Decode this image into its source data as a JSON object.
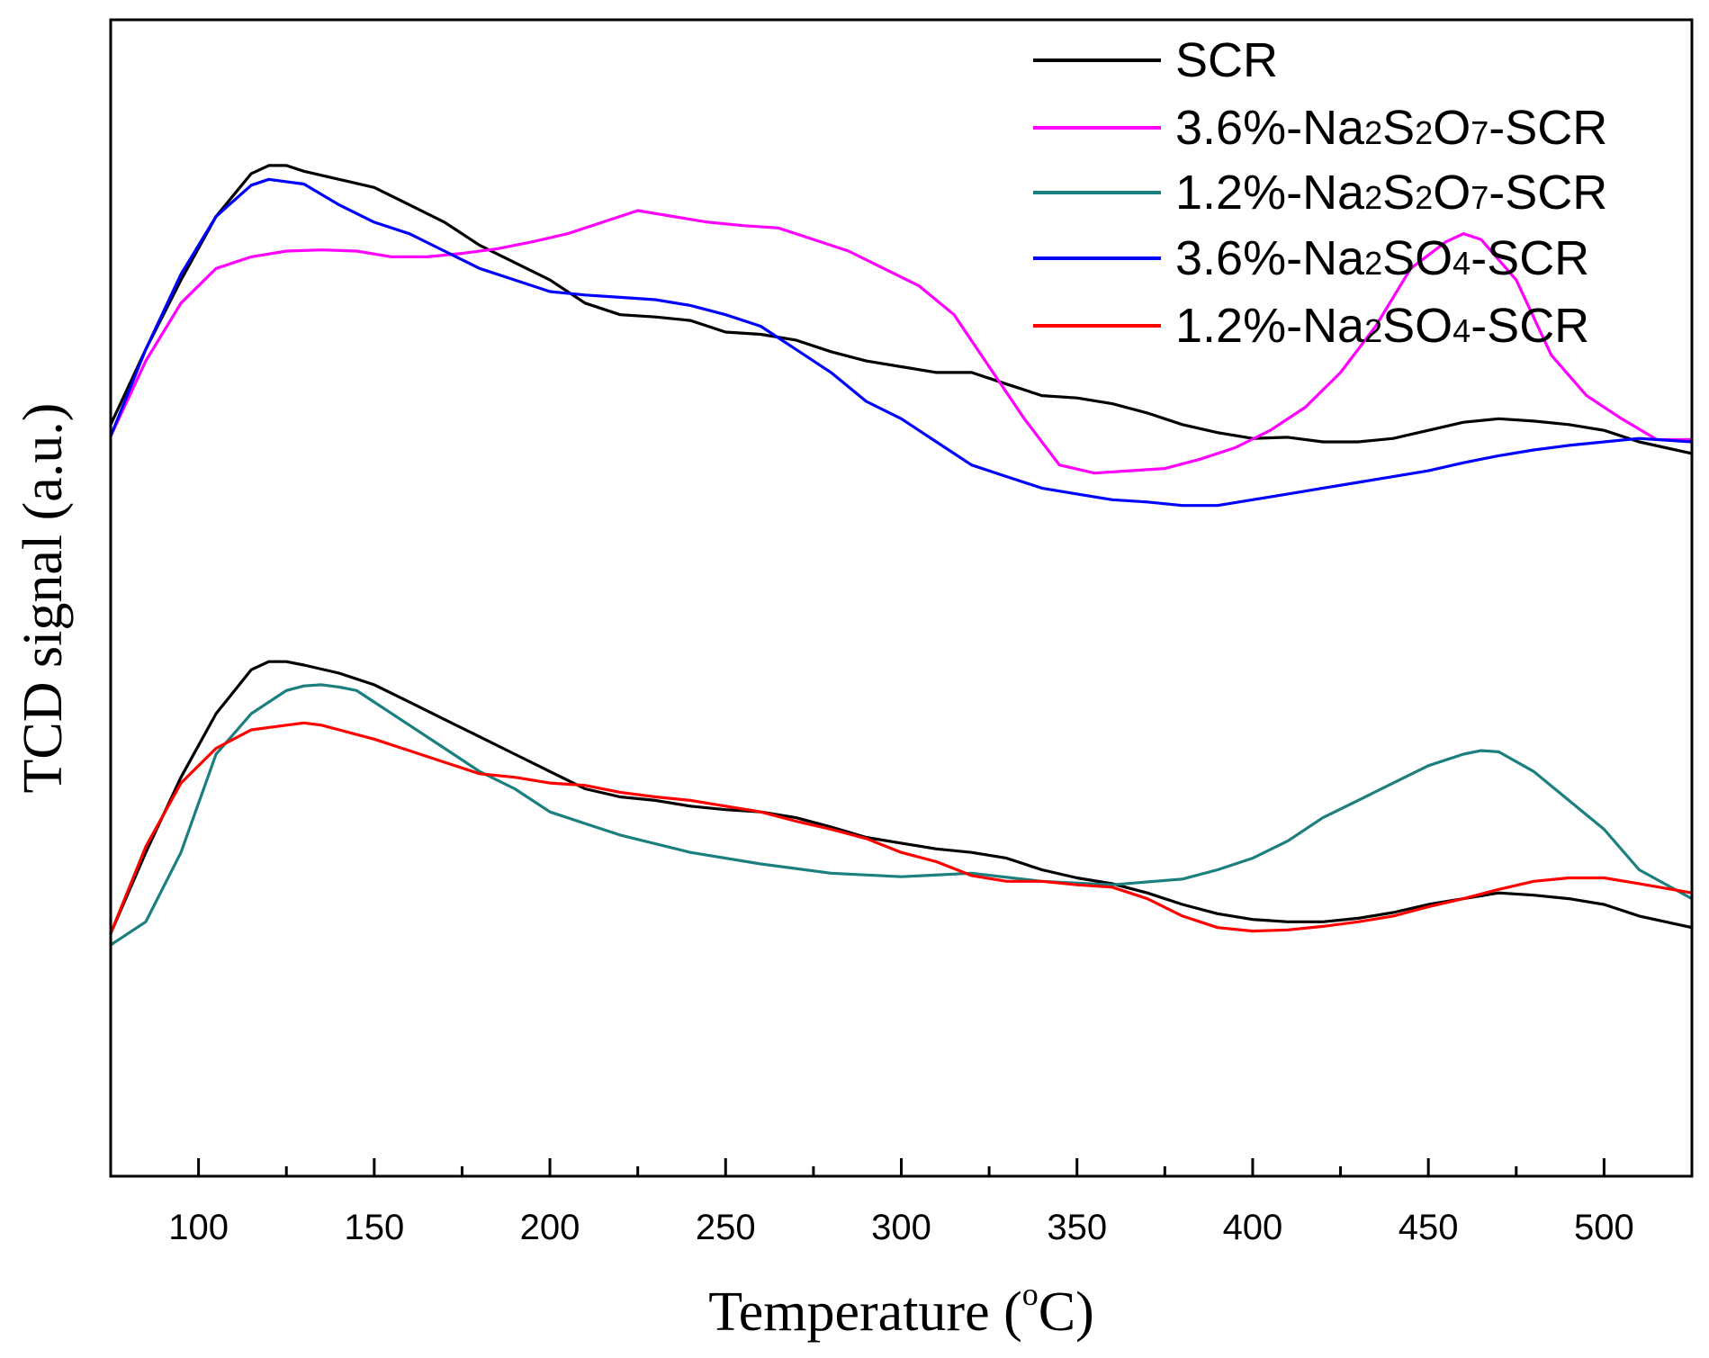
{
  "chart_data": {
    "type": "line",
    "title": "",
    "xlabel": "Temperature (oC)",
    "xlabel_parts": {
      "prefix": "Temperature (",
      "sup": "o",
      "suffix": "C)"
    },
    "ylabel": "TCD signal (a.u.)",
    "xlim": [
      75,
      525
    ],
    "ylim": [
      0,
      100
    ],
    "y_ticks_shown": false,
    "x_ticks": [
      100,
      150,
      200,
      250,
      300,
      350,
      400,
      450,
      500
    ],
    "x_tick_labels": [
      "100",
      "150",
      "200",
      "250",
      "300",
      "350",
      "400",
      "450",
      "500"
    ],
    "legend_position": "top-right",
    "series": [
      {
        "name": "SCR (upper)",
        "legend_label": "SCR",
        "color": "#000000",
        "x": [
          75,
          85,
          95,
          105,
          115,
          120,
          125,
          130,
          140,
          150,
          160,
          170,
          180,
          190,
          200,
          210,
          220,
          230,
          240,
          250,
          260,
          270,
          280,
          290,
          300,
          310,
          320,
          330,
          340,
          350,
          360,
          370,
          380,
          390,
          400,
          410,
          420,
          430,
          440,
          450,
          460,
          470,
          480,
          490,
          500,
          510,
          525
        ],
        "y": [
          65,
          71.5,
          77.5,
          83,
          86.7,
          87.4,
          87.4,
          86.9,
          86.2,
          85.5,
          84,
          82.5,
          80.5,
          79,
          77.5,
          75.5,
          74.5,
          74.3,
          74,
          73,
          72.8,
          72.3,
          71.3,
          70.5,
          70,
          69.5,
          69.5,
          68.5,
          67.5,
          67.3,
          66.8,
          66,
          65,
          64.3,
          63.8,
          63.9,
          63.5,
          63.5,
          63.8,
          64.5,
          65.2,
          65.5,
          65.3,
          65,
          64.5,
          63.5,
          62.5
        ]
      },
      {
        "name": "3.6%-Na2S2O7-SCR",
        "legend_label": "3.6%-Na2S2O7-SCR",
        "legend_parts": [
          "3.6%-Na",
          "2",
          "S",
          "2",
          "O",
          "7",
          "-SCR"
        ],
        "color": "#ff00ff",
        "x": [
          75,
          85,
          95,
          105,
          115,
          125,
          135,
          145,
          155,
          165,
          175,
          185,
          195,
          205,
          215,
          225,
          235,
          245,
          255,
          265,
          275,
          285,
          295,
          305,
          315,
          325,
          335,
          345,
          355,
          365,
          375,
          385,
          395,
          405,
          415,
          425,
          435,
          445,
          455,
          460,
          465,
          475,
          485,
          495,
          505,
          515,
          525
        ],
        "y": [
          64,
          70.5,
          75.5,
          78.5,
          79.5,
          80,
          80.1,
          80,
          79.5,
          79.5,
          79.8,
          80.2,
          80.8,
          81.5,
          82.5,
          83.5,
          83,
          82.5,
          82.2,
          82,
          81,
          80,
          78.5,
          77,
          74.5,
          70,
          65.5,
          61.5,
          60.8,
          61,
          61.2,
          62,
          63,
          64.5,
          66.5,
          69.5,
          73.5,
          78.5,
          80.8,
          81.5,
          81,
          77.5,
          71,
          67.5,
          65.5,
          63.7,
          63.7
        ]
      },
      {
        "name": "3.6%-Na2SO4-SCR",
        "legend_label": "3.6%-Na2SO4-SCR",
        "legend_parts": [
          "3.6%-Na",
          "2",
          "SO",
          "4",
          "-SCR"
        ],
        "color": "#0000ff",
        "x": [
          75,
          85,
          95,
          105,
          115,
          120,
          125,
          130,
          140,
          150,
          160,
          170,
          180,
          190,
          200,
          210,
          220,
          230,
          240,
          250,
          260,
          270,
          280,
          290,
          300,
          310,
          320,
          330,
          340,
          350,
          360,
          370,
          380,
          390,
          400,
          410,
          420,
          430,
          440,
          450,
          460,
          470,
          480,
          490,
          500,
          510,
          525
        ],
        "y": [
          64,
          71.5,
          78,
          83,
          85.7,
          86.2,
          86,
          85.8,
          84,
          82.5,
          81.5,
          80,
          78.5,
          77.5,
          76.5,
          76.2,
          76,
          75.8,
          75.3,
          74.5,
          73.5,
          71.5,
          69.5,
          67,
          65.5,
          63.5,
          61.5,
          60.5,
          59.5,
          59,
          58.5,
          58.3,
          58,
          58,
          58.5,
          59,
          59.5,
          60,
          60.5,
          61,
          61.7,
          62.3,
          62.8,
          63.2,
          63.5,
          63.8,
          63.5
        ]
      },
      {
        "name": "SCR (lower)",
        "legend_label": "SCR",
        "color": "#000000",
        "x": [
          75,
          85,
          95,
          105,
          115,
          120,
          125,
          130,
          140,
          150,
          160,
          170,
          180,
          190,
          200,
          210,
          220,
          230,
          240,
          250,
          260,
          270,
          280,
          290,
          300,
          310,
          320,
          330,
          340,
          350,
          360,
          370,
          380,
          390,
          400,
          410,
          420,
          430,
          440,
          450,
          460,
          470,
          480,
          490,
          500,
          510,
          525
        ],
        "y": [
          21,
          28,
          34.5,
          40,
          43.8,
          44.5,
          44.5,
          44.2,
          43.5,
          42.5,
          41,
          39.5,
          38,
          36.5,
          35,
          33.5,
          32.8,
          32.5,
          32,
          31.7,
          31.5,
          31,
          30.2,
          29.3,
          28.8,
          28.3,
          28,
          27.5,
          26.5,
          25.8,
          25.3,
          24.5,
          23.5,
          22.7,
          22.2,
          22,
          22,
          22.3,
          22.8,
          23.5,
          24,
          24.5,
          24.3,
          24,
          23.5,
          22.5,
          21.5
        ]
      },
      {
        "name": "1.2%-Na2S2O7-SCR",
        "legend_label": "1.2%-Na2S2O7-SCR",
        "legend_parts": [
          "1.2%-Na",
          "2",
          "S",
          "2",
          "O",
          "7",
          "-SCR"
        ],
        "color": "#1b7f7f",
        "x": [
          75,
          85,
          95,
          105,
          115,
          125,
          130,
          135,
          140,
          145,
          150,
          160,
          170,
          180,
          190,
          200,
          210,
          220,
          240,
          260,
          280,
          300,
          320,
          340,
          360,
          380,
          390,
          400,
          410,
          420,
          430,
          440,
          450,
          460,
          465,
          470,
          480,
          490,
          500,
          510,
          525
        ],
        "y": [
          20,
          22,
          28,
          36.5,
          40,
          42,
          42.4,
          42.5,
          42.3,
          42,
          41,
          39,
          37,
          35,
          33.5,
          31.5,
          30.5,
          29.5,
          28,
          27,
          26.2,
          25.9,
          26.2,
          25.5,
          25.2,
          25.7,
          26.5,
          27.5,
          29,
          31,
          32.5,
          34,
          35.5,
          36.5,
          36.8,
          36.7,
          35,
          32.5,
          30,
          26.5,
          24
        ]
      },
      {
        "name": "1.2%-Na2SO4-SCR",
        "legend_label": "1.2%-Na2SO4-SCR",
        "legend_parts": [
          "1.2%-Na",
          "2",
          "SO",
          "4",
          "-SCR"
        ],
        "color": "#ff0000",
        "x": [
          75,
          85,
          95,
          105,
          115,
          125,
          130,
          135,
          140,
          150,
          160,
          170,
          180,
          190,
          200,
          210,
          220,
          230,
          240,
          250,
          260,
          270,
          280,
          290,
          300,
          310,
          320,
          330,
          340,
          350,
          360,
          370,
          380,
          390,
          400,
          410,
          420,
          430,
          440,
          450,
          460,
          470,
          480,
          490,
          500,
          510,
          525
        ],
        "y": [
          21,
          28.5,
          34,
          37,
          38.6,
          39,
          39.2,
          39,
          38.6,
          37.8,
          36.8,
          35.8,
          34.8,
          34.5,
          34,
          33.8,
          33.2,
          32.8,
          32.5,
          32,
          31.5,
          30.7,
          30,
          29.2,
          28,
          27.2,
          26,
          25.5,
          25.5,
          25.2,
          25,
          24,
          22.5,
          21.5,
          21.2,
          21.3,
          21.6,
          22,
          22.5,
          23.3,
          24,
          24.8,
          25.5,
          25.8,
          25.8,
          25.3,
          24.5
        ]
      }
    ],
    "legend": [
      {
        "series": 0,
        "parts": [
          "SCR"
        ]
      },
      {
        "series": 1
      },
      {
        "series": 4
      },
      {
        "series": 2
      },
      {
        "series": 5
      }
    ]
  }
}
